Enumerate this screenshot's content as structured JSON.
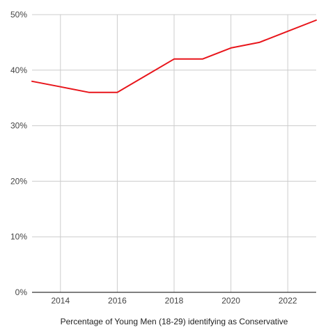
{
  "chart_data": {
    "type": "line",
    "title": "",
    "xlabel": "Percentage of Young Men (18-29) identifying as Conservative",
    "ylabel": "",
    "x": [
      2013,
      2014,
      2015,
      2016,
      2017,
      2018,
      2019,
      2020,
      2021,
      2022,
      2023
    ],
    "series": [
      {
        "values": [
          38,
          37,
          36,
          36,
          39,
          42,
          42,
          44,
          45,
          47,
          49
        ],
        "color": "#e8151b"
      }
    ],
    "xlim": [
      2013,
      2023
    ],
    "ylim": [
      0,
      50
    ],
    "x_ticks": [
      2014,
      2016,
      2018,
      2020,
      2022
    ],
    "x_tick_labels": [
      "2014",
      "2016",
      "2018",
      "2020",
      "2022"
    ],
    "y_ticks": [
      0,
      10,
      20,
      30,
      40,
      50
    ],
    "y_tick_labels": [
      "0%",
      "10%",
      "20%",
      "30%",
      "40%",
      "50%"
    ],
    "grid": true,
    "legend": "none",
    "colors": {
      "line": "#e8151b",
      "grid": "#cccccc",
      "axis": "#333333"
    }
  }
}
